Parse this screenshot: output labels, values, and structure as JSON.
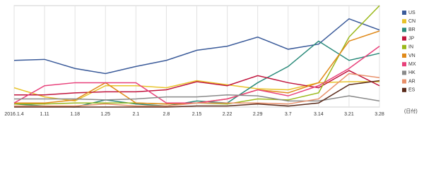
{
  "chart_data": {
    "type": "line",
    "x_label": "(日付)",
    "categories": [
      "2016.1.4",
      "1.11",
      "1.18",
      "1.25",
      "2.1",
      "2.8",
      "2.15",
      "2.22",
      "2.29",
      "3.7",
      "3.14",
      "3.21",
      "3.28"
    ],
    "ylim": [
      0,
      100
    ],
    "grid": true,
    "legend": "right",
    "series": [
      {
        "name": "US",
        "color": "#3b5b9a",
        "values": [
          46,
          47,
          38,
          33,
          40,
          46,
          56,
          60,
          69,
          57,
          62,
          87,
          76
        ]
      },
      {
        "name": "CN",
        "color": "#e8c32a",
        "values": [
          19,
          10,
          6,
          21,
          21,
          19,
          26,
          22,
          18,
          17,
          24,
          25,
          25
        ]
      },
      {
        "name": "BR",
        "color": "#2a8a7a",
        "values": [
          3,
          1,
          0,
          7,
          3,
          1,
          6,
          4,
          24,
          40,
          65,
          46,
          53
        ]
      },
      {
        "name": "JP",
        "color": "#c0143c",
        "values": [
          12,
          12,
          14,
          15,
          15,
          17,
          25,
          21,
          31,
          24,
          19,
          36,
          21
        ]
      },
      {
        "name": "IN",
        "color": "#9ab81a",
        "values": [
          3,
          3,
          4,
          4,
          4,
          3,
          4,
          3,
          8,
          7,
          14,
          69,
          100
        ]
      },
      {
        "name": "VN",
        "color": "#e08a1a",
        "values": [
          4,
          4,
          7,
          24,
          4,
          3,
          4,
          8,
          17,
          14,
          24,
          65,
          75
        ]
      },
      {
        "name": "MX",
        "color": "#e8407a",
        "values": [
          4,
          21,
          24,
          24,
          24,
          4,
          4,
          8,
          17,
          11,
          21,
          38,
          60
        ]
      },
      {
        "name": "HK",
        "color": "#8a8a8a",
        "values": [
          8,
          8,
          8,
          7,
          8,
          10,
          10,
          12,
          11,
          6,
          6,
          11,
          6
        ]
      },
      {
        "name": "AR",
        "color": "#e8906a",
        "values": [
          1,
          1,
          1,
          3,
          1,
          1,
          4,
          4,
          4,
          3,
          8,
          33,
          29
        ]
      },
      {
        "name": "ES",
        "color": "#5a2a1a",
        "values": [
          0,
          0,
          0,
          0,
          0,
          0,
          1,
          1,
          3,
          1,
          4,
          22,
          26
        ]
      }
    ]
  }
}
